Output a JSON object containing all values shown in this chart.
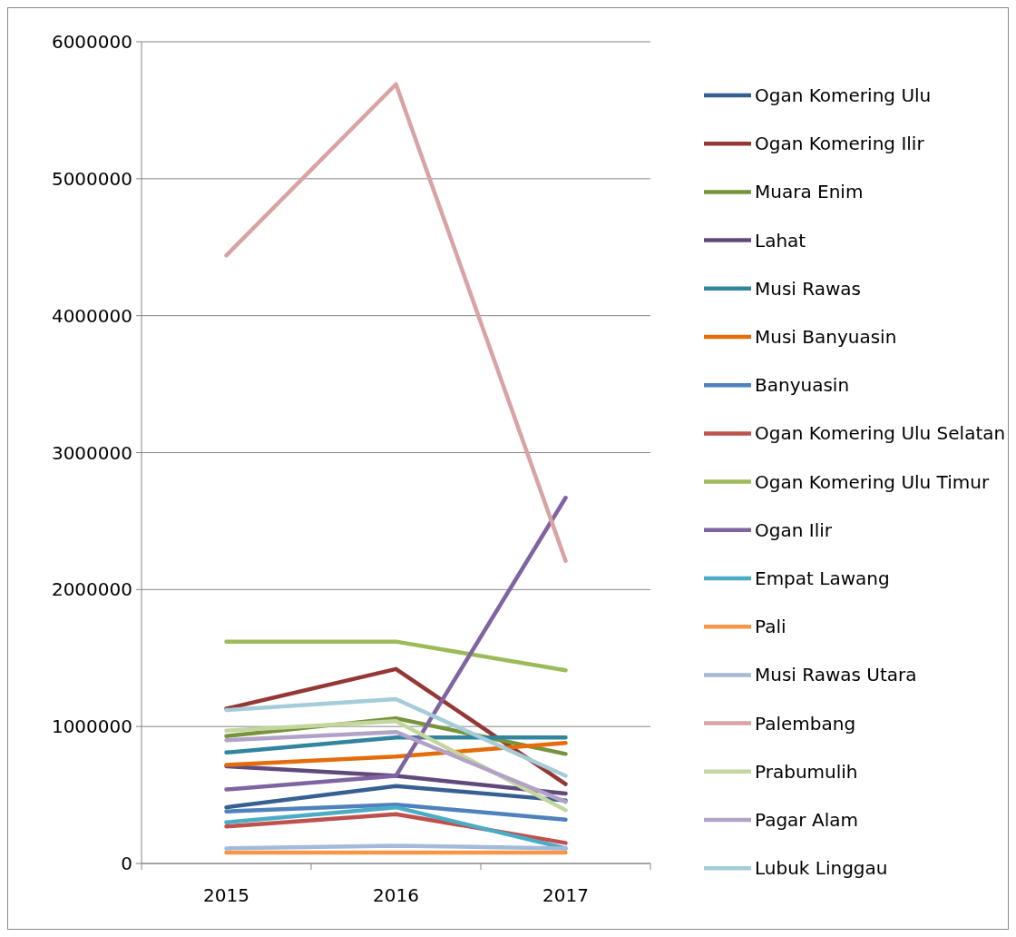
{
  "chart_data": {
    "type": "line",
    "categories": [
      "2015",
      "2016",
      "2017"
    ],
    "ylim": [
      0,
      6000000
    ],
    "yticks": [
      0,
      1000000,
      2000000,
      3000000,
      4000000,
      5000000,
      6000000
    ],
    "grid": "y",
    "legend": "right",
    "marker": "none",
    "series": [
      {
        "name": "Ogan Komering Ulu",
        "color": "#376092",
        "values": [
          410000,
          565000,
          460000
        ]
      },
      {
        "name": "Ogan Komering Ilir",
        "color": "#953735",
        "values": [
          1130000,
          1420000,
          580000
        ]
      },
      {
        "name": "Muara Enim",
        "color": "#77933c",
        "values": [
          930000,
          1060000,
          800000
        ]
      },
      {
        "name": "Lahat",
        "color": "#604a7b",
        "values": [
          710000,
          640000,
          510000
        ]
      },
      {
        "name": "Musi Rawas",
        "color": "#31859c",
        "values": [
          810000,
          920000,
          920000
        ]
      },
      {
        "name": "Musi Banyuasin",
        "color": "#e46c0a",
        "values": [
          720000,
          780000,
          880000
        ]
      },
      {
        "name": "Banyuasin",
        "color": "#4f81bd",
        "values": [
          380000,
          430000,
          320000
        ]
      },
      {
        "name": "Ogan Komering Ulu Selatan",
        "color": "#c0504d",
        "values": [
          270000,
          360000,
          150000
        ]
      },
      {
        "name": "Ogan Komering Ulu Timur",
        "color": "#9bbb59",
        "values": [
          1620000,
          1620000,
          1410000
        ]
      },
      {
        "name": "Ogan Ilir",
        "color": "#8064a2",
        "values": [
          540000,
          640000,
          2670000
        ]
      },
      {
        "name": "Empat Lawang",
        "color": "#4bacc6",
        "values": [
          300000,
          410000,
          110000
        ]
      },
      {
        "name": "Pali",
        "color": "#f79646",
        "values": [
          80000,
          80000,
          80000
        ]
      },
      {
        "name": "Musi Rawas Utara",
        "color": "#a5b9d9",
        "values": [
          110000,
          130000,
          110000
        ]
      },
      {
        "name": "Palembang",
        "color": "#d9a3a3",
        "values": [
          4440000,
          5690000,
          2210000
        ]
      },
      {
        "name": "Prabumulih",
        "color": "#c4d6a0",
        "values": [
          970000,
          1040000,
          390000
        ]
      },
      {
        "name": "Pagar Alam",
        "color": "#b3a2c7",
        "values": [
          900000,
          960000,
          450000
        ]
      },
      {
        "name": "Lubuk Linggau",
        "color": "#a5cdd9",
        "values": [
          1120000,
          1200000,
          640000
        ]
      }
    ]
  }
}
